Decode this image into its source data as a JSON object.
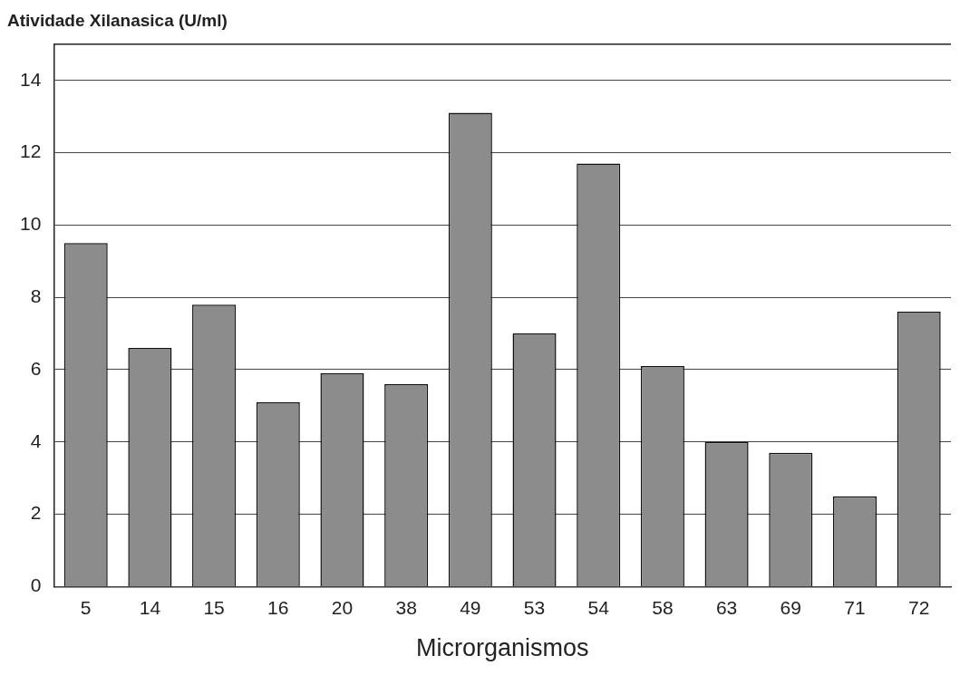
{
  "chart_data": {
    "type": "bar",
    "ylabel": "Atividade Xilanasica (U/ml)",
    "xlabel": "Microrganismos",
    "categories": [
      "5",
      "14",
      "15",
      "16",
      "20",
      "38",
      "49",
      "53",
      "54",
      "58",
      "63",
      "69",
      "71",
      "72"
    ],
    "values": [
      9.5,
      6.6,
      7.8,
      5.1,
      5.9,
      5.6,
      13.1,
      7.0,
      11.7,
      6.1,
      4.0,
      3.7,
      2.5,
      7.6
    ],
    "color": "#8c8c8c",
    "ylim": [
      0,
      15
    ],
    "yticks": [
      0,
      2,
      4,
      6,
      8,
      10,
      12,
      14
    ],
    "grid": "y",
    "legend": false
  }
}
